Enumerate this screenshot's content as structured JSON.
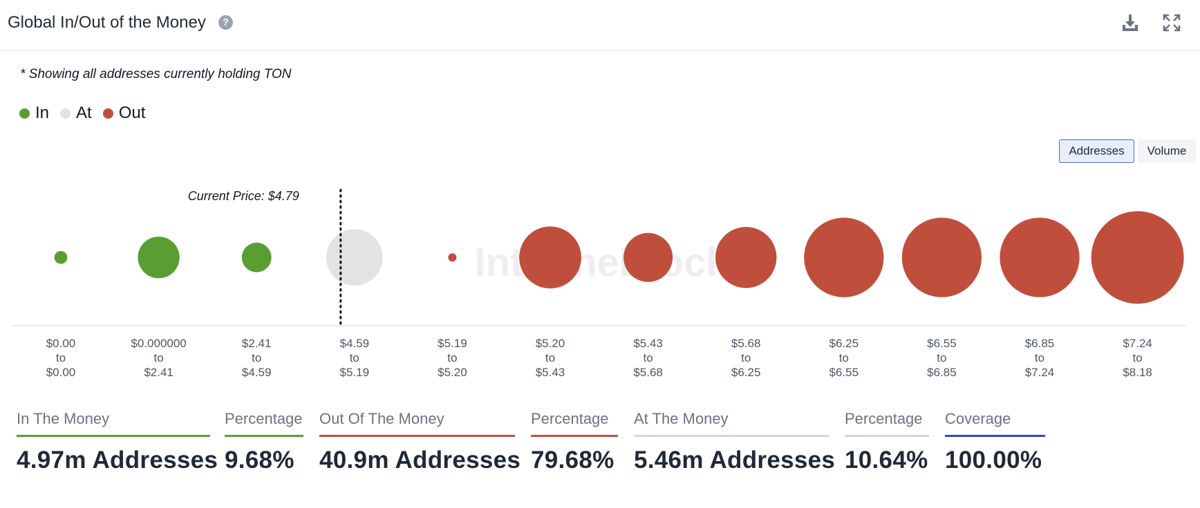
{
  "header": {
    "title": "Global In/Out of the Money",
    "help_icon": "question-circle-icon",
    "download_icon": "download-icon",
    "expand_icon": "expand-icon"
  },
  "note": "* Showing all addresses currently holding TON",
  "legend": [
    {
      "label": "In",
      "color": "#5a9e33"
    },
    {
      "label": "At",
      "color": "#e3e3e3"
    },
    {
      "label": "Out",
      "color": "#bf4f3c"
    }
  ],
  "toggles": {
    "addresses": "Addresses",
    "volume": "Volume",
    "active": "addresses"
  },
  "watermark": "IntoTheBlock",
  "chart_data": {
    "type": "scatter",
    "current_price_label": "Current Price: $4.79",
    "current_price_position": "between $4.59 to $5.19 bucket, left side",
    "buckets": [
      {
        "low": "$0.00",
        "high": "$0.00",
        "status": "in",
        "size": 0.14
      },
      {
        "low": "$0.000000",
        "high": "$2.41",
        "status": "in",
        "size": 0.45
      },
      {
        "low": "$2.41",
        "high": "$4.59",
        "status": "in",
        "size": 0.32
      },
      {
        "low": "$4.59",
        "high": "$5.19",
        "status": "at",
        "size": 0.61
      },
      {
        "low": "$5.19",
        "high": "$5.20",
        "status": "out",
        "size": 0.09
      },
      {
        "low": "$5.20",
        "high": "$5.43",
        "status": "out",
        "size": 0.67
      },
      {
        "low": "$5.43",
        "high": "$5.68",
        "status": "out",
        "size": 0.53
      },
      {
        "low": "$5.68",
        "high": "$6.25",
        "status": "out",
        "size": 0.66
      },
      {
        "low": "$6.25",
        "high": "$6.55",
        "status": "out",
        "size": 0.86
      },
      {
        "low": "$6.55",
        "high": "$6.85",
        "status": "out",
        "size": 0.86
      },
      {
        "low": "$6.85",
        "high": "$7.24",
        "status": "out",
        "size": 0.86
      },
      {
        "low": "$7.24",
        "high": "$8.18",
        "status": "out",
        "size": 1.0
      }
    ],
    "to_word": "to",
    "colors": {
      "in": "#5a9e33",
      "at": "#e3e3e3",
      "out": "#bf4f3c"
    }
  },
  "stats": [
    {
      "label": "In The Money",
      "value": "4.97m Addresses",
      "color": "#5a9e33"
    },
    {
      "label": "Percentage",
      "value": "9.68%",
      "color": "#5a9e33"
    },
    {
      "label": "Out Of The Money",
      "value": "40.9m Addresses",
      "color": "#bf4f3c"
    },
    {
      "label": "Percentage",
      "value": "79.68%",
      "color": "#bf4f3c"
    },
    {
      "label": "At The Money",
      "value": "5.46m Addresses",
      "color": "#d1d5db"
    },
    {
      "label": "Percentage",
      "value": "10.64%",
      "color": "#d1d5db"
    },
    {
      "label": "Coverage",
      "value": "100.00%",
      "color": "#2f44d8"
    }
  ]
}
